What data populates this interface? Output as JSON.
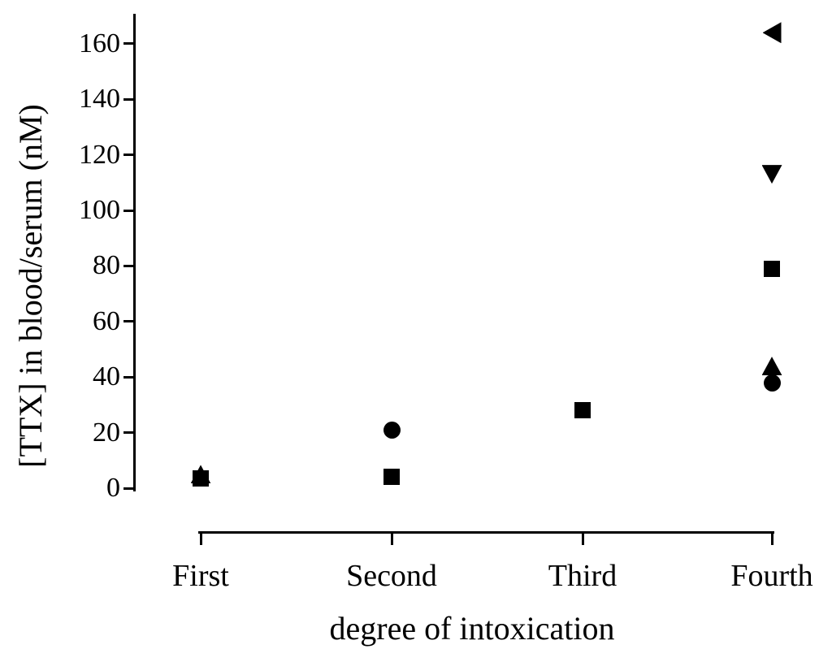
{
  "figure": {
    "background_color": "#ffffff",
    "ink_color": "#000000"
  },
  "chart_data": {
    "type": "scatter",
    "title": "",
    "xlabel": "degree of intoxication",
    "ylabel": "[TTX] in blood/serum (nM)",
    "categories": [
      "First",
      "Second",
      "Third",
      "Fourth"
    ],
    "y_ticks": [
      0,
      20,
      40,
      60,
      80,
      100,
      120,
      140,
      160
    ],
    "ylim": [
      0,
      160
    ],
    "grid": false,
    "legend": "none",
    "marker_color": "#000000",
    "series": [
      {
        "name": "triangle-left-markers",
        "marker": "triangle-left",
        "points": [
          {
            "category": "Fourth",
            "value": 164
          }
        ]
      },
      {
        "name": "triangle-down-markers",
        "marker": "triangle-down",
        "points": [
          {
            "category": "Fourth",
            "value": 113
          }
        ]
      },
      {
        "name": "triangle-up-markers",
        "marker": "triangle-up",
        "points": [
          {
            "category": "First",
            "value": 5
          },
          {
            "category": "Fourth",
            "value": 44
          }
        ]
      },
      {
        "name": "square-markers",
        "marker": "square",
        "points": [
          {
            "category": "First",
            "value": 3.5
          },
          {
            "category": "Second",
            "value": 4
          },
          {
            "category": "Third",
            "value": 28
          },
          {
            "category": "Fourth",
            "value": 79
          }
        ]
      },
      {
        "name": "circle-markers",
        "marker": "circle",
        "points": [
          {
            "category": "Second",
            "value": 21
          },
          {
            "category": "Fourth",
            "value": 38
          }
        ]
      }
    ]
  }
}
